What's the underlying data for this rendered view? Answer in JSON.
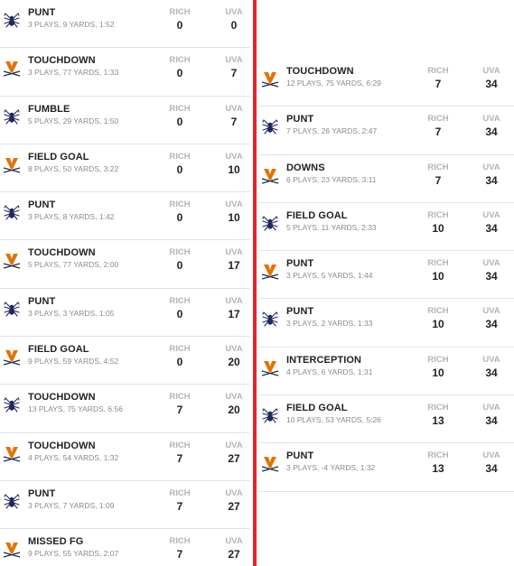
{
  "teams": {
    "home_abbr": "RICH",
    "away_abbr": "UVA"
  },
  "colors": {
    "divider": "#e0262d",
    "rich_navy": "#1f2a5c",
    "uva_orange": "#e57200",
    "uva_navy": "#232d4b"
  },
  "left_drives": [
    {
      "team": "rich",
      "icon": "spider-icon",
      "result": "PUNT",
      "summary": "3 PLAYS, 9 YARDS, 1:52",
      "rich": "0",
      "uva": "0"
    },
    {
      "team": "uva",
      "icon": "cavaliers-v-icon",
      "result": "TOUCHDOWN",
      "summary": "3 PLAYS, 77 YARDS, 1:33",
      "rich": "0",
      "uva": "7"
    },
    {
      "team": "rich",
      "icon": "spider-icon",
      "result": "FUMBLE",
      "summary": "5 PLAYS, 29 YARDS, 1:50",
      "rich": "0",
      "uva": "7"
    },
    {
      "team": "uva",
      "icon": "cavaliers-v-icon",
      "result": "FIELD GOAL",
      "summary": "8 PLAYS, 50 YARDS, 3:22",
      "rich": "0",
      "uva": "10"
    },
    {
      "team": "rich",
      "icon": "spider-icon",
      "result": "PUNT",
      "summary": "3 PLAYS, 8 YARDS, 1:42",
      "rich": "0",
      "uva": "10"
    },
    {
      "team": "uva",
      "icon": "cavaliers-v-icon",
      "result": "TOUCHDOWN",
      "summary": "5 PLAYS, 77 YARDS, 2:00",
      "rich": "0",
      "uva": "17"
    },
    {
      "team": "rich",
      "icon": "spider-icon",
      "result": "PUNT",
      "summary": "3 PLAYS, 3 YARDS, 1:05",
      "rich": "0",
      "uva": "17"
    },
    {
      "team": "uva",
      "icon": "cavaliers-v-icon",
      "result": "FIELD GOAL",
      "summary": "9 PLAYS, 59 YARDS, 4:52",
      "rich": "0",
      "uva": "20"
    },
    {
      "team": "rich",
      "icon": "spider-icon",
      "result": "TOUCHDOWN",
      "summary": "13 PLAYS, 75 YARDS, 6:56",
      "rich": "7",
      "uva": "20"
    },
    {
      "team": "uva",
      "icon": "cavaliers-v-icon",
      "result": "TOUCHDOWN",
      "summary": "4 PLAYS, 54 YARDS, 1:32",
      "rich": "7",
      "uva": "27"
    },
    {
      "team": "rich",
      "icon": "spider-icon",
      "result": "PUNT",
      "summary": "3 PLAYS, 7 YARDS, 1:09",
      "rich": "7",
      "uva": "27"
    },
    {
      "team": "uva",
      "icon": "cavaliers-v-icon",
      "result": "MISSED FG",
      "summary": "9 PLAYS, 55 YARDS, 2:07",
      "rich": "7",
      "uva": "27"
    }
  ],
  "right_drives": [
    {
      "team": "uva",
      "icon": "cavaliers-v-icon",
      "result": "TOUCHDOWN",
      "summary": "12 PLAYS, 75 YARDS, 6:29",
      "rich": "7",
      "uva": "34"
    },
    {
      "team": "rich",
      "icon": "spider-icon",
      "result": "PUNT",
      "summary": "7 PLAYS, 26 YARDS, 2:47",
      "rich": "7",
      "uva": "34"
    },
    {
      "team": "uva",
      "icon": "cavaliers-v-icon",
      "result": "DOWNS",
      "summary": "6 PLAYS, 23 YARDS, 3:11",
      "rich": "7",
      "uva": "34"
    },
    {
      "team": "rich",
      "icon": "spider-icon",
      "result": "FIELD GOAL",
      "summary": "5 PLAYS, 11 YARDS, 2:33",
      "rich": "10",
      "uva": "34"
    },
    {
      "team": "uva",
      "icon": "cavaliers-v-icon",
      "result": "PUNT",
      "summary": "3 PLAYS, 5 YARDS, 1:44",
      "rich": "10",
      "uva": "34"
    },
    {
      "team": "rich",
      "icon": "spider-icon",
      "result": "PUNT",
      "summary": "3 PLAYS, 2 YARDS, 1:33",
      "rich": "10",
      "uva": "34"
    },
    {
      "team": "uva",
      "icon": "cavaliers-v-icon",
      "result": "INTERCEPTION",
      "summary": "4 PLAYS, 6 YARDS, 1:31",
      "rich": "10",
      "uva": "34"
    },
    {
      "team": "rich",
      "icon": "spider-icon",
      "result": "FIELD GOAL",
      "summary": "10 PLAYS, 53 YARDS, 5:26",
      "rich": "13",
      "uva": "34"
    },
    {
      "team": "uva",
      "icon": "cavaliers-v-icon",
      "result": "PUNT",
      "summary": "3 PLAYS, -4 YARDS, 1:32",
      "rich": "13",
      "uva": "34"
    }
  ]
}
